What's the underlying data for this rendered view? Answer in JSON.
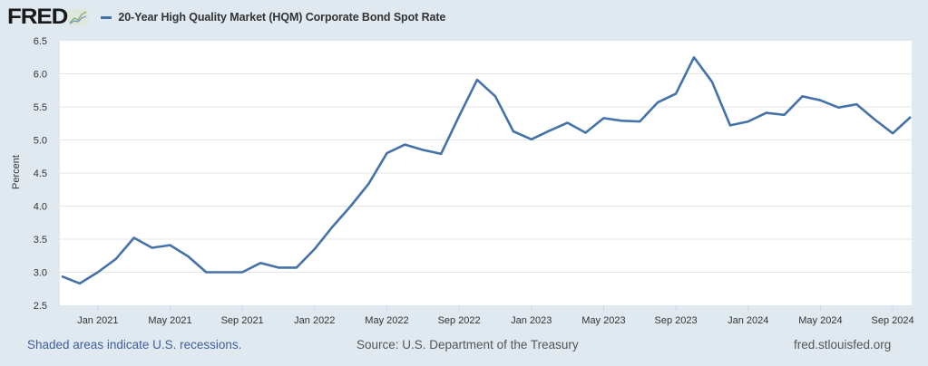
{
  "header": {
    "logo_text": "FRED",
    "logo_icon": "fred-graph-icon",
    "legend_label": "20-Year High Quality Market (HQM) Corporate Bond Spot Rate"
  },
  "colors": {
    "background": "#e1e9f0",
    "plot_background": "#ffffff",
    "series": "#4572a7",
    "gridline": "#e6e6e6",
    "footer_link": "#3e5f9c"
  },
  "footer": {
    "recession_note": "Shaded areas indicate U.S. recessions.",
    "source": "Source: U.S. Department of the Treasury",
    "site": "fred.stlouisfed.org"
  },
  "chart_data": {
    "type": "line",
    "title": "20-Year High Quality Market (HQM) Corporate Bond Spot Rate",
    "xlabel": "",
    "ylabel": "Percent",
    "ylim": [
      2.5,
      6.5
    ],
    "yticks": [
      "2.5",
      "3.0",
      "3.5",
      "4.0",
      "4.5",
      "5.0",
      "5.5",
      "6.0",
      "6.5"
    ],
    "xlim": [
      "2020-11",
      "2024-10"
    ],
    "xtick_labels": [
      {
        "label": "Jan 2021",
        "date": "2021-01"
      },
      {
        "label": "May 2021",
        "date": "2021-05"
      },
      {
        "label": "Sep 2021",
        "date": "2021-09"
      },
      {
        "label": "Jan 2022",
        "date": "2022-01"
      },
      {
        "label": "May 2022",
        "date": "2022-05"
      },
      {
        "label": "Sep 2022",
        "date": "2022-09"
      },
      {
        "label": "Jan 2023",
        "date": "2023-01"
      },
      {
        "label": "May 2023",
        "date": "2023-05"
      },
      {
        "label": "Sep 2023",
        "date": "2023-09"
      },
      {
        "label": "Jan 2024",
        "date": "2024-01"
      },
      {
        "label": "May 2024",
        "date": "2024-05"
      },
      {
        "label": "Sep 2024",
        "date": "2024-09"
      }
    ],
    "grid": true,
    "legend_position": "top-left",
    "series": [
      {
        "name": "20-Year High Quality Market (HQM) Corporate Bond Spot Rate",
        "x": [
          "2020-11",
          "2020-12",
          "2021-01",
          "2021-02",
          "2021-03",
          "2021-04",
          "2021-05",
          "2021-06",
          "2021-07",
          "2021-08",
          "2021-09",
          "2021-10",
          "2021-11",
          "2021-12",
          "2022-01",
          "2022-02",
          "2022-03",
          "2022-04",
          "2022-05",
          "2022-06",
          "2022-07",
          "2022-08",
          "2022-09",
          "2022-10",
          "2022-11",
          "2022-12",
          "2023-01",
          "2023-02",
          "2023-03",
          "2023-04",
          "2023-05",
          "2023-06",
          "2023-07",
          "2023-08",
          "2023-09",
          "2023-10",
          "2023-11",
          "2023-12",
          "2024-01",
          "2024-02",
          "2024-03",
          "2024-04",
          "2024-05",
          "2024-06",
          "2024-07",
          "2024-08",
          "2024-09",
          "2024-10"
        ],
        "values": [
          2.94,
          2.83,
          3.0,
          3.2,
          3.52,
          3.37,
          3.41,
          3.24,
          3.0,
          3.0,
          3.0,
          3.14,
          3.07,
          3.07,
          3.35,
          3.69,
          4.0,
          4.34,
          4.8,
          4.93,
          4.85,
          4.79,
          5.36,
          5.91,
          5.66,
          5.13,
          5.01,
          5.14,
          5.26,
          5.11,
          5.33,
          5.29,
          5.28,
          5.57,
          5.7,
          6.25,
          5.88,
          5.22,
          5.28,
          5.41,
          5.38,
          5.66,
          5.6,
          5.49,
          5.54,
          5.31,
          5.1,
          5.35
        ]
      }
    ]
  }
}
